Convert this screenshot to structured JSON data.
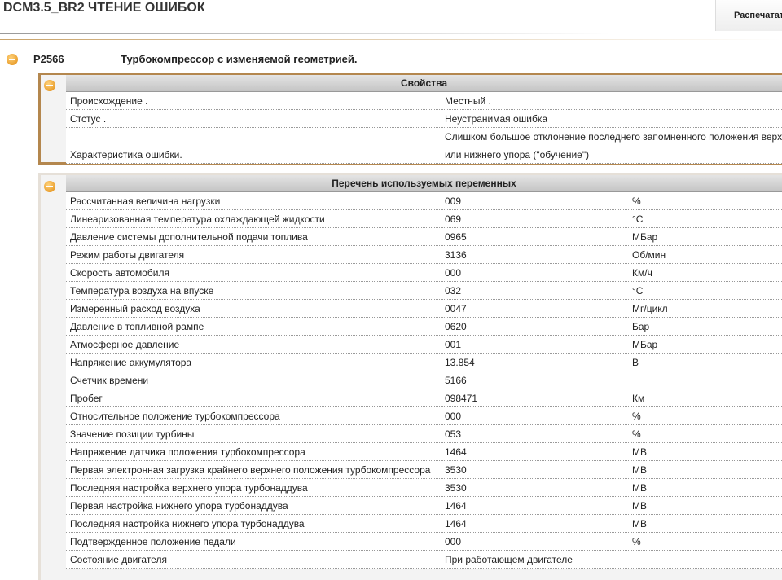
{
  "header": {
    "title": "DCM3.5_BR2  ЧТЕНИЕ ОШИБОК",
    "print_button": "Распечатат"
  },
  "fault": {
    "code": "P2566",
    "description": "Турбокомпрессор с изменяемой геометрией."
  },
  "properties": {
    "title": "Свойства",
    "rows": [
      {
        "label": "Происхождение .",
        "lines": [
          "Местный ."
        ]
      },
      {
        "label": "Стстус .",
        "lines": [
          "Неустранимая ошибка"
        ]
      },
      {
        "label": "Характеристика ошибки.",
        "lines": [
          "Слишком большое отклонение последнего запомненного положения верх",
          "или нижнего упора (\"обучение\")"
        ]
      }
    ]
  },
  "variables": {
    "title": "Перечень используемых переменных",
    "rows": [
      {
        "name": "Рассчитанная величина нагрузки",
        "value": "009",
        "unit": "%"
      },
      {
        "name": "Линеаризованная температура охлаждающей жидкости",
        "value": "069",
        "unit": "°C"
      },
      {
        "name": "Давление системы дополнительной подачи топлива",
        "value": "0965",
        "unit": "МБар"
      },
      {
        "name": "Режим работы двигателя",
        "value": "3136",
        "unit": "Об/мин"
      },
      {
        "name": "Скорость автомобиля",
        "value": "000",
        "unit": "Км/ч"
      },
      {
        "name": "Температура воздуха на впуске",
        "value": "032",
        "unit": "°C"
      },
      {
        "name": "Измеренный расход воздуха",
        "value": "0047",
        "unit": "Мг/цикл"
      },
      {
        "name": "Давление в топливной рампе",
        "value": "0620",
        "unit": "Бар"
      },
      {
        "name": "Атмосферное давление",
        "value": "001",
        "unit": "МБар"
      },
      {
        "name": "Напряжение аккумулятора",
        "value": "13.854",
        "unit": "В"
      },
      {
        "name": "Счетчик времени",
        "value": "5166"
      },
      {
        "name": "Пробег",
        "value": "098471",
        "unit": "Км"
      },
      {
        "name": "Относительное положение турбокомпрессора",
        "value": "000",
        "unit": "%"
      },
      {
        "name": "Значение позиции турбины",
        "value": "053",
        "unit": "%"
      },
      {
        "name": "Напряжение датчика положения турбокомпрессора",
        "value": "1464",
        "unit": "МВ"
      },
      {
        "name": "Первая электронная загрузка крайнего верхнего положения турбокомпрессора",
        "value": "3530",
        "unit": "МВ"
      },
      {
        "name": "Последняя настройка верхнего упора турбонаддува",
        "value": "3530",
        "unit": "МВ"
      },
      {
        "name": "Первая настройка нижнего упора турбонаддува",
        "value": "1464",
        "unit": "МВ"
      },
      {
        "name": "Последняя настройка нижнего упора турбонаддува",
        "value": "1464",
        "unit": "МВ"
      },
      {
        "name": "Подтвержденное положение педали",
        "value": "000",
        "unit": "%"
      },
      {
        "name": "Состояние двигателя",
        "value": "При работающем двигателе"
      }
    ]
  }
}
